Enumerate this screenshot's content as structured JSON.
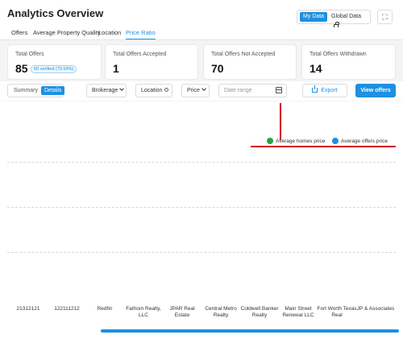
{
  "header": {
    "title": "Analytics Overview",
    "data_toggle": {
      "my_data": "My Data",
      "global_data": "Global Data"
    },
    "tabs": [
      {
        "label": "Offers"
      },
      {
        "label": "Average Property Quality"
      },
      {
        "label": "Location"
      },
      {
        "label": "Price Ratio",
        "active": true
      }
    ]
  },
  "cards": [
    {
      "label": "Total Offers",
      "value": "85",
      "badge": "60 verified (70.59%)"
    },
    {
      "label": "Total Offers Accepted",
      "value": "1"
    },
    {
      "label": "Total Offers Not Accepted",
      "value": "70"
    },
    {
      "label": "Total Offers Withdrawn",
      "value": "14"
    }
  ],
  "controls": {
    "summary": "Summary",
    "details": "Details",
    "brokerage": "Brokerage",
    "location": "Location",
    "price": "Price",
    "date_placeholder": "Date range",
    "export": "Export",
    "view_offers": "View offers"
  },
  "chart_data": {
    "type": "bar",
    "categories": [
      "21312121",
      "122111212",
      "Redfin",
      "Fathom Realty, LLC",
      "JPAR Real Estate",
      "Central Metro Realty",
      "Coldwell Banker Realty",
      "Main Street Renewal LLC",
      "Fort Worth Texas Real",
      "JP & Associates"
    ],
    "series": [
      {
        "name": "Average homes price",
        "color": "#2ca04a"
      },
      {
        "name": "Average offers price",
        "color": "#1e90e0"
      }
    ],
    "grid": true,
    "legend": "top-right"
  },
  "colors": {
    "accent": "#1e90e0",
    "annotation": "#d40000"
  }
}
